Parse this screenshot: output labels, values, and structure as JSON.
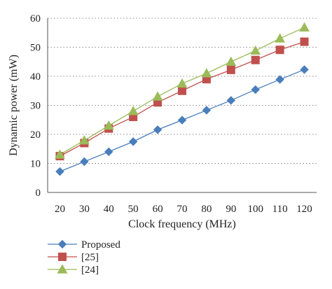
{
  "chart_data": {
    "type": "line",
    "title": "",
    "xlabel": "Clock frequency (MHz)",
    "ylabel": "Dynamic power (mW)",
    "x": [
      20,
      30,
      40,
      50,
      60,
      70,
      80,
      90,
      100,
      110,
      120
    ],
    "xlim": [
      15,
      125
    ],
    "ylim": [
      0,
      60
    ],
    "yticks": [
      0,
      10,
      20,
      30,
      40,
      50,
      60
    ],
    "grid": "horizontal dotted",
    "legend_position": "bottom-left",
    "series": [
      {
        "name": "Proposed",
        "color": "#4a7ebb",
        "marker": "diamond",
        "values": [
          7.2,
          10.6,
          14.0,
          17.5,
          21.6,
          24.9,
          28.3,
          31.7,
          35.4,
          38.9,
          42.3
        ]
      },
      {
        "name": "[25]",
        "color": "#c0504d",
        "marker": "square",
        "values": [
          12.5,
          17.0,
          22.0,
          26.0,
          31.0,
          35.0,
          39.0,
          42.2,
          45.6,
          49.1,
          51.9
        ]
      },
      {
        "name": "[24]",
        "color": "#9bbb59",
        "marker": "triangle",
        "values": [
          13.0,
          17.9,
          23.0,
          28.0,
          33.0,
          37.5,
          41.0,
          45.0,
          48.8,
          53.0,
          56.8
        ]
      }
    ]
  }
}
